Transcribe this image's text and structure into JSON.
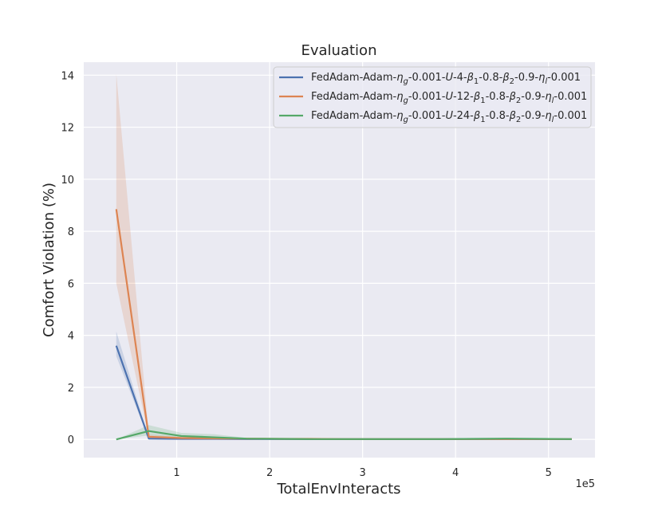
{
  "chart_data": {
    "type": "line",
    "title": "Evaluation",
    "xlabel": "TotalEnvInteracts",
    "ylabel": "Comfort Violation (%)",
    "x_offset_label": "1e5",
    "xlim": [
      0.0,
      5.5
    ],
    "ylim": [
      -0.7,
      14.5
    ],
    "x_ticks": [
      1,
      2,
      3,
      4,
      5
    ],
    "x_tick_labels": [
      "1",
      "2",
      "3",
      "4",
      "5"
    ],
    "y_ticks": [
      0,
      2,
      4,
      6,
      8,
      10,
      12,
      14
    ],
    "y_tick_labels": [
      "0",
      "2",
      "4",
      "6",
      "8",
      "10",
      "12",
      "14"
    ],
    "grid": true,
    "background": "#eaeaf2",
    "legend_position": "top-right",
    "x": [
      0.35,
      0.7,
      1.05,
      1.4,
      1.75,
      2.1,
      2.45,
      2.8,
      3.15,
      3.5,
      3.85,
      4.2,
      4.55,
      4.9,
      5.25
    ],
    "series": [
      {
        "name": "FedAdam-Adam-ηg-0.001-U-4-β1-0.8-β2-0.9-ηl-0.001",
        "label_parts": [
          {
            "t": "FedAdam-Adam-"
          },
          {
            "t": "η",
            "i": true
          },
          {
            "t": "g",
            "sub": true,
            "i": true
          },
          {
            "t": "-0.001-"
          },
          {
            "t": "U",
            "i": true
          },
          {
            "t": "-4-"
          },
          {
            "t": "β",
            "i": true
          },
          {
            "t": "1",
            "sub": true
          },
          {
            "t": "-0.8-"
          },
          {
            "t": "β",
            "i": true
          },
          {
            "t": "2",
            "sub": true
          },
          {
            "t": "-0.9-"
          },
          {
            "t": "η",
            "i": true
          },
          {
            "t": "l",
            "sub": true,
            "i": true
          },
          {
            "t": "-0.001"
          }
        ],
        "color": "#4c72b0",
        "values": [
          3.6,
          0.03,
          0.02,
          0.02,
          0.01,
          0.01,
          0.01,
          0.01,
          0.01,
          0.01,
          0.01,
          0.01,
          0.01,
          0.01,
          0.01
        ],
        "lower": [
          3.2,
          0.0,
          0.0,
          0.0,
          0.0,
          0.0,
          0.0,
          0.0,
          0.0,
          0.0,
          0.0,
          0.0,
          0.0,
          0.0,
          0.0
        ],
        "upper": [
          4.15,
          0.06,
          0.05,
          0.04,
          0.03,
          0.02,
          0.02,
          0.02,
          0.02,
          0.02,
          0.02,
          0.02,
          0.02,
          0.02,
          0.02
        ]
      },
      {
        "name": "FedAdam-Adam-ηg-0.001-U-12-β1-0.8-β2-0.9-ηl-0.001",
        "label_parts": [
          {
            "t": "FedAdam-Adam-"
          },
          {
            "t": "η",
            "i": true
          },
          {
            "t": "g",
            "sub": true,
            "i": true
          },
          {
            "t": "-0.001-"
          },
          {
            "t": "U",
            "i": true
          },
          {
            "t": "-12-"
          },
          {
            "t": "β",
            "i": true
          },
          {
            "t": "1",
            "sub": true
          },
          {
            "t": "-0.8-"
          },
          {
            "t": "β",
            "i": true
          },
          {
            "t": "2",
            "sub": true
          },
          {
            "t": "-0.9-"
          },
          {
            "t": "η",
            "i": true
          },
          {
            "t": "l",
            "sub": true,
            "i": true
          },
          {
            "t": "-0.001"
          }
        ],
        "color": "#dd8452",
        "values": [
          8.85,
          0.1,
          0.05,
          0.04,
          0.03,
          0.02,
          0.02,
          0.01,
          0.01,
          0.01,
          0.01,
          0.01,
          0.01,
          0.01,
          0.01
        ],
        "lower": [
          6.0,
          0.05,
          0.02,
          0.02,
          0.01,
          0.0,
          0.0,
          0.0,
          0.0,
          0.0,
          0.0,
          0.0,
          0.0,
          0.0,
          0.0
        ],
        "upper": [
          14.05,
          0.18,
          0.1,
          0.08,
          0.05,
          0.04,
          0.03,
          0.02,
          0.02,
          0.02,
          0.02,
          0.02,
          0.02,
          0.02,
          0.02
        ]
      },
      {
        "name": "FedAdam-Adam-ηg-0.001-U-24-β1-0.8-β2-0.9-ηl-0.001",
        "label_parts": [
          {
            "t": "FedAdam-Adam-"
          },
          {
            "t": "η",
            "i": true
          },
          {
            "t": "g",
            "sub": true,
            "i": true
          },
          {
            "t": "-0.001-"
          },
          {
            "t": "U",
            "i": true
          },
          {
            "t": "-24-"
          },
          {
            "t": "β",
            "i": true
          },
          {
            "t": "1",
            "sub": true
          },
          {
            "t": "-0.8-"
          },
          {
            "t": "β",
            "i": true
          },
          {
            "t": "2",
            "sub": true
          },
          {
            "t": "-0.9-"
          },
          {
            "t": "η",
            "i": true
          },
          {
            "t": "l",
            "sub": true,
            "i": true
          },
          {
            "t": "-0.001"
          }
        ],
        "color": "#55a868",
        "values": [
          0.0,
          0.32,
          0.13,
          0.08,
          0.03,
          0.02,
          0.01,
          0.01,
          0.01,
          0.01,
          0.01,
          0.02,
          0.03,
          0.02,
          0.01
        ],
        "lower": [
          0.0,
          0.15,
          0.05,
          0.03,
          0.0,
          0.0,
          0.0,
          0.0,
          0.0,
          0.0,
          0.0,
          0.0,
          0.0,
          0.0,
          0.0
        ],
        "upper": [
          0.0,
          0.55,
          0.25,
          0.2,
          0.06,
          0.04,
          0.03,
          0.03,
          0.03,
          0.03,
          0.04,
          0.05,
          0.06,
          0.04,
          0.03
        ]
      }
    ]
  }
}
